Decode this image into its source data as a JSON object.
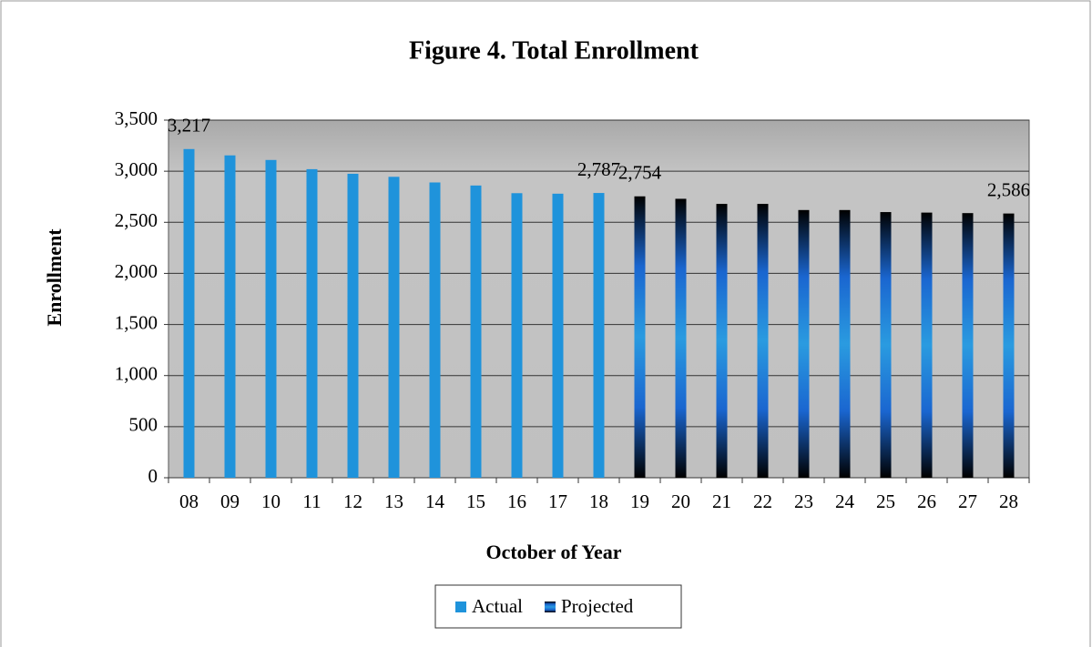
{
  "chart_data": {
    "type": "bar",
    "title": "Figure  4. Total Enrollment",
    "x_label": "October of Year",
    "y_label": "Enrollment",
    "categories": [
      "08",
      "09",
      "10",
      "11",
      "12",
      "13",
      "14",
      "15",
      "16",
      "17",
      "18",
      "19",
      "20",
      "21",
      "22",
      "23",
      "24",
      "25",
      "26",
      "27",
      "28"
    ],
    "series": [
      {
        "name": "Actual",
        "color": "#1f93db",
        "values": [
          3217,
          3155,
          3110,
          3020,
          2975,
          2945,
          2890,
          2860,
          2785,
          2780,
          2787,
          null,
          null,
          null,
          null,
          null,
          null,
          null,
          null,
          null,
          null
        ],
        "value_labels": [
          "3,217",
          null,
          null,
          null,
          null,
          null,
          null,
          null,
          null,
          null,
          "2,787",
          null,
          null,
          null,
          null,
          null,
          null,
          null,
          null,
          null,
          null
        ]
      },
      {
        "name": "Projected",
        "color": "#1a66d0",
        "values": [
          null,
          null,
          null,
          null,
          null,
          null,
          null,
          null,
          null,
          null,
          null,
          2754,
          2730,
          2680,
          2680,
          2620,
          2620,
          2600,
          2595,
          2590,
          2586
        ],
        "value_labels": [
          null,
          null,
          null,
          null,
          null,
          null,
          null,
          null,
          null,
          null,
          null,
          "2,754",
          null,
          null,
          null,
          null,
          null,
          null,
          null,
          null,
          "2,586"
        ]
      }
    ],
    "ylim": [
      0,
      3500
    ],
    "yticks": [
      0,
      500,
      {
        "value": 1000,
        "label": "1,000"
      },
      {
        "value": 1500,
        "label": "1,500"
      },
      {
        "value": 2000,
        "label": "2,000"
      },
      {
        "value": 2500,
        "label": "2,500"
      },
      {
        "value": 3000,
        "label": "3,000"
      },
      {
        "value": 3500,
        "label": "3,500"
      }
    ],
    "grid": true,
    "legend": "bottom"
  }
}
